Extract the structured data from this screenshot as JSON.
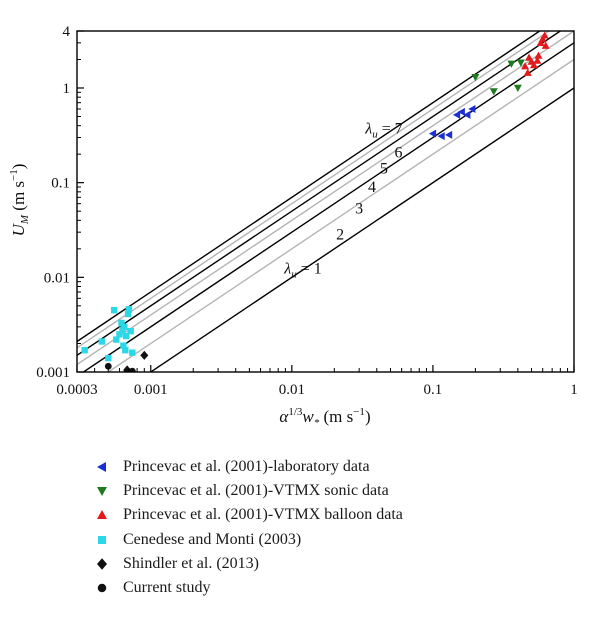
{
  "chart_data": {
    "type": "scatter",
    "x_scale": "log",
    "y_scale": "log",
    "xlim": [
      0.0003,
      1
    ],
    "ylim": [
      0.001,
      4
    ],
    "xlabel": "α^{1/3}w_* (m s^{-1})",
    "ylabel": "U_M (m s^{-1})",
    "x_ticks": [
      "0.0003",
      "0.001",
      "0.01",
      "0.1",
      "1"
    ],
    "y_ticks": [
      "0.001",
      "0.01",
      "0.1",
      "1",
      "4"
    ],
    "reference_lines": [
      {
        "lambda": 1,
        "label": "λu = 1",
        "color": "#000000"
      },
      {
        "lambda": 2,
        "label": "2",
        "color": "#b4b4b4"
      },
      {
        "lambda": 3,
        "label": "3",
        "color": "#000000"
      },
      {
        "lambda": 4,
        "label": "4",
        "color": "#b4b4b4"
      },
      {
        "lambda": 5,
        "label": "5",
        "color": "#000000"
      },
      {
        "lambda": 6,
        "label": "6",
        "color": "#b4b4b4"
      },
      {
        "lambda": 7,
        "label": "λu = 7",
        "color": "#000000"
      }
    ],
    "series": [
      {
        "name": "Princevac et al. (2001)-laboratory data",
        "marker": "triangle-left",
        "color": "#1c2fd6",
        "points": [
          [
            0.1,
            0.33
          ],
          [
            0.115,
            0.31
          ],
          [
            0.13,
            0.32
          ],
          [
            0.148,
            0.52
          ],
          [
            0.16,
            0.56
          ],
          [
            0.175,
            0.52
          ],
          [
            0.19,
            0.6
          ]
        ]
      },
      {
        "name": "Princevac et al. (2001)-VTMX sonic data",
        "marker": "triangle-down",
        "color": "#1f7a1f",
        "points": [
          [
            0.2,
            1.3
          ],
          [
            0.27,
            0.92
          ],
          [
            0.36,
            1.8
          ],
          [
            0.4,
            1.0
          ],
          [
            0.42,
            1.85
          ]
        ]
      },
      {
        "name": "Princevac et al. (2001)-VTMX balloon data",
        "marker": "triangle-up",
        "color": "#e11b1b",
        "points": [
          [
            0.45,
            1.7
          ],
          [
            0.47,
            1.45
          ],
          [
            0.5,
            1.9
          ],
          [
            0.52,
            1.75
          ],
          [
            0.55,
            1.95
          ],
          [
            0.58,
            3.0
          ],
          [
            0.6,
            3.3
          ],
          [
            0.63,
            2.8
          ],
          [
            0.62,
            3.6
          ],
          [
            0.56,
            2.2
          ],
          [
            0.48,
            2.1
          ]
        ]
      },
      {
        "name": "Cenedese and Monti (2003)",
        "marker": "square",
        "color": "#2ad8e8",
        "points": [
          [
            0.00034,
            0.0017
          ],
          [
            0.00045,
            0.0021
          ],
          [
            0.0005,
            0.0014
          ],
          [
            0.00055,
            0.0045
          ],
          [
            0.00057,
            0.0022
          ],
          [
            0.0006,
            0.0025
          ],
          [
            0.00062,
            0.0033
          ],
          [
            0.00063,
            0.0028
          ],
          [
            0.00064,
            0.0019
          ],
          [
            0.00066,
            0.0017
          ],
          [
            0.00067,
            0.0024
          ],
          [
            0.00069,
            0.0041
          ],
          [
            0.0007,
            0.0046
          ],
          [
            0.00072,
            0.0027
          ],
          [
            0.00074,
            0.0016
          ],
          [
            0.00065,
            0.003
          ]
        ]
      },
      {
        "name": "Shindler et al. (2013)",
        "marker": "diamond",
        "color": "#111111",
        "points": [
          [
            0.00068,
            0.00105
          ],
          [
            0.0009,
            0.0015
          ]
        ]
      },
      {
        "name": "Current study",
        "marker": "circle",
        "color": "#111111",
        "points": [
          [
            0.0005,
            0.00115
          ],
          [
            0.00068,
            0.001
          ],
          [
            0.00074,
            0.00102
          ]
        ]
      }
    ]
  }
}
